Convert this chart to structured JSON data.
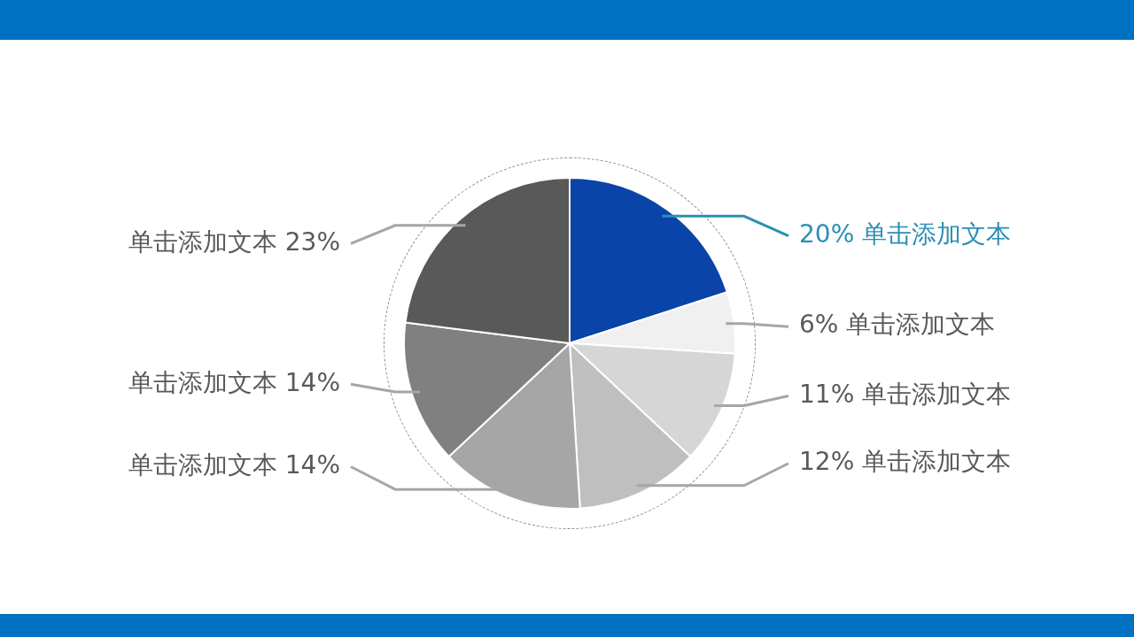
{
  "chart_data": {
    "type": "pie",
    "categories": [
      "单击添加文本",
      "单击添加文本",
      "单击添加文本",
      "单击添加文本",
      "单击添加文本",
      "单击添加文本",
      "单击添加文本"
    ],
    "values": [
      20,
      6,
      11,
      12,
      14,
      14,
      23
    ],
    "colors": [
      "#0a44a8",
      "#f0f0f0",
      "#d6d6d6",
      "#bfbfbf",
      "#a6a6a6",
      "#808080",
      "#595959"
    ],
    "value_labels": [
      "20%",
      "6%",
      "11%",
      "12%",
      "14%",
      "14%",
      "23%"
    ]
  }
}
